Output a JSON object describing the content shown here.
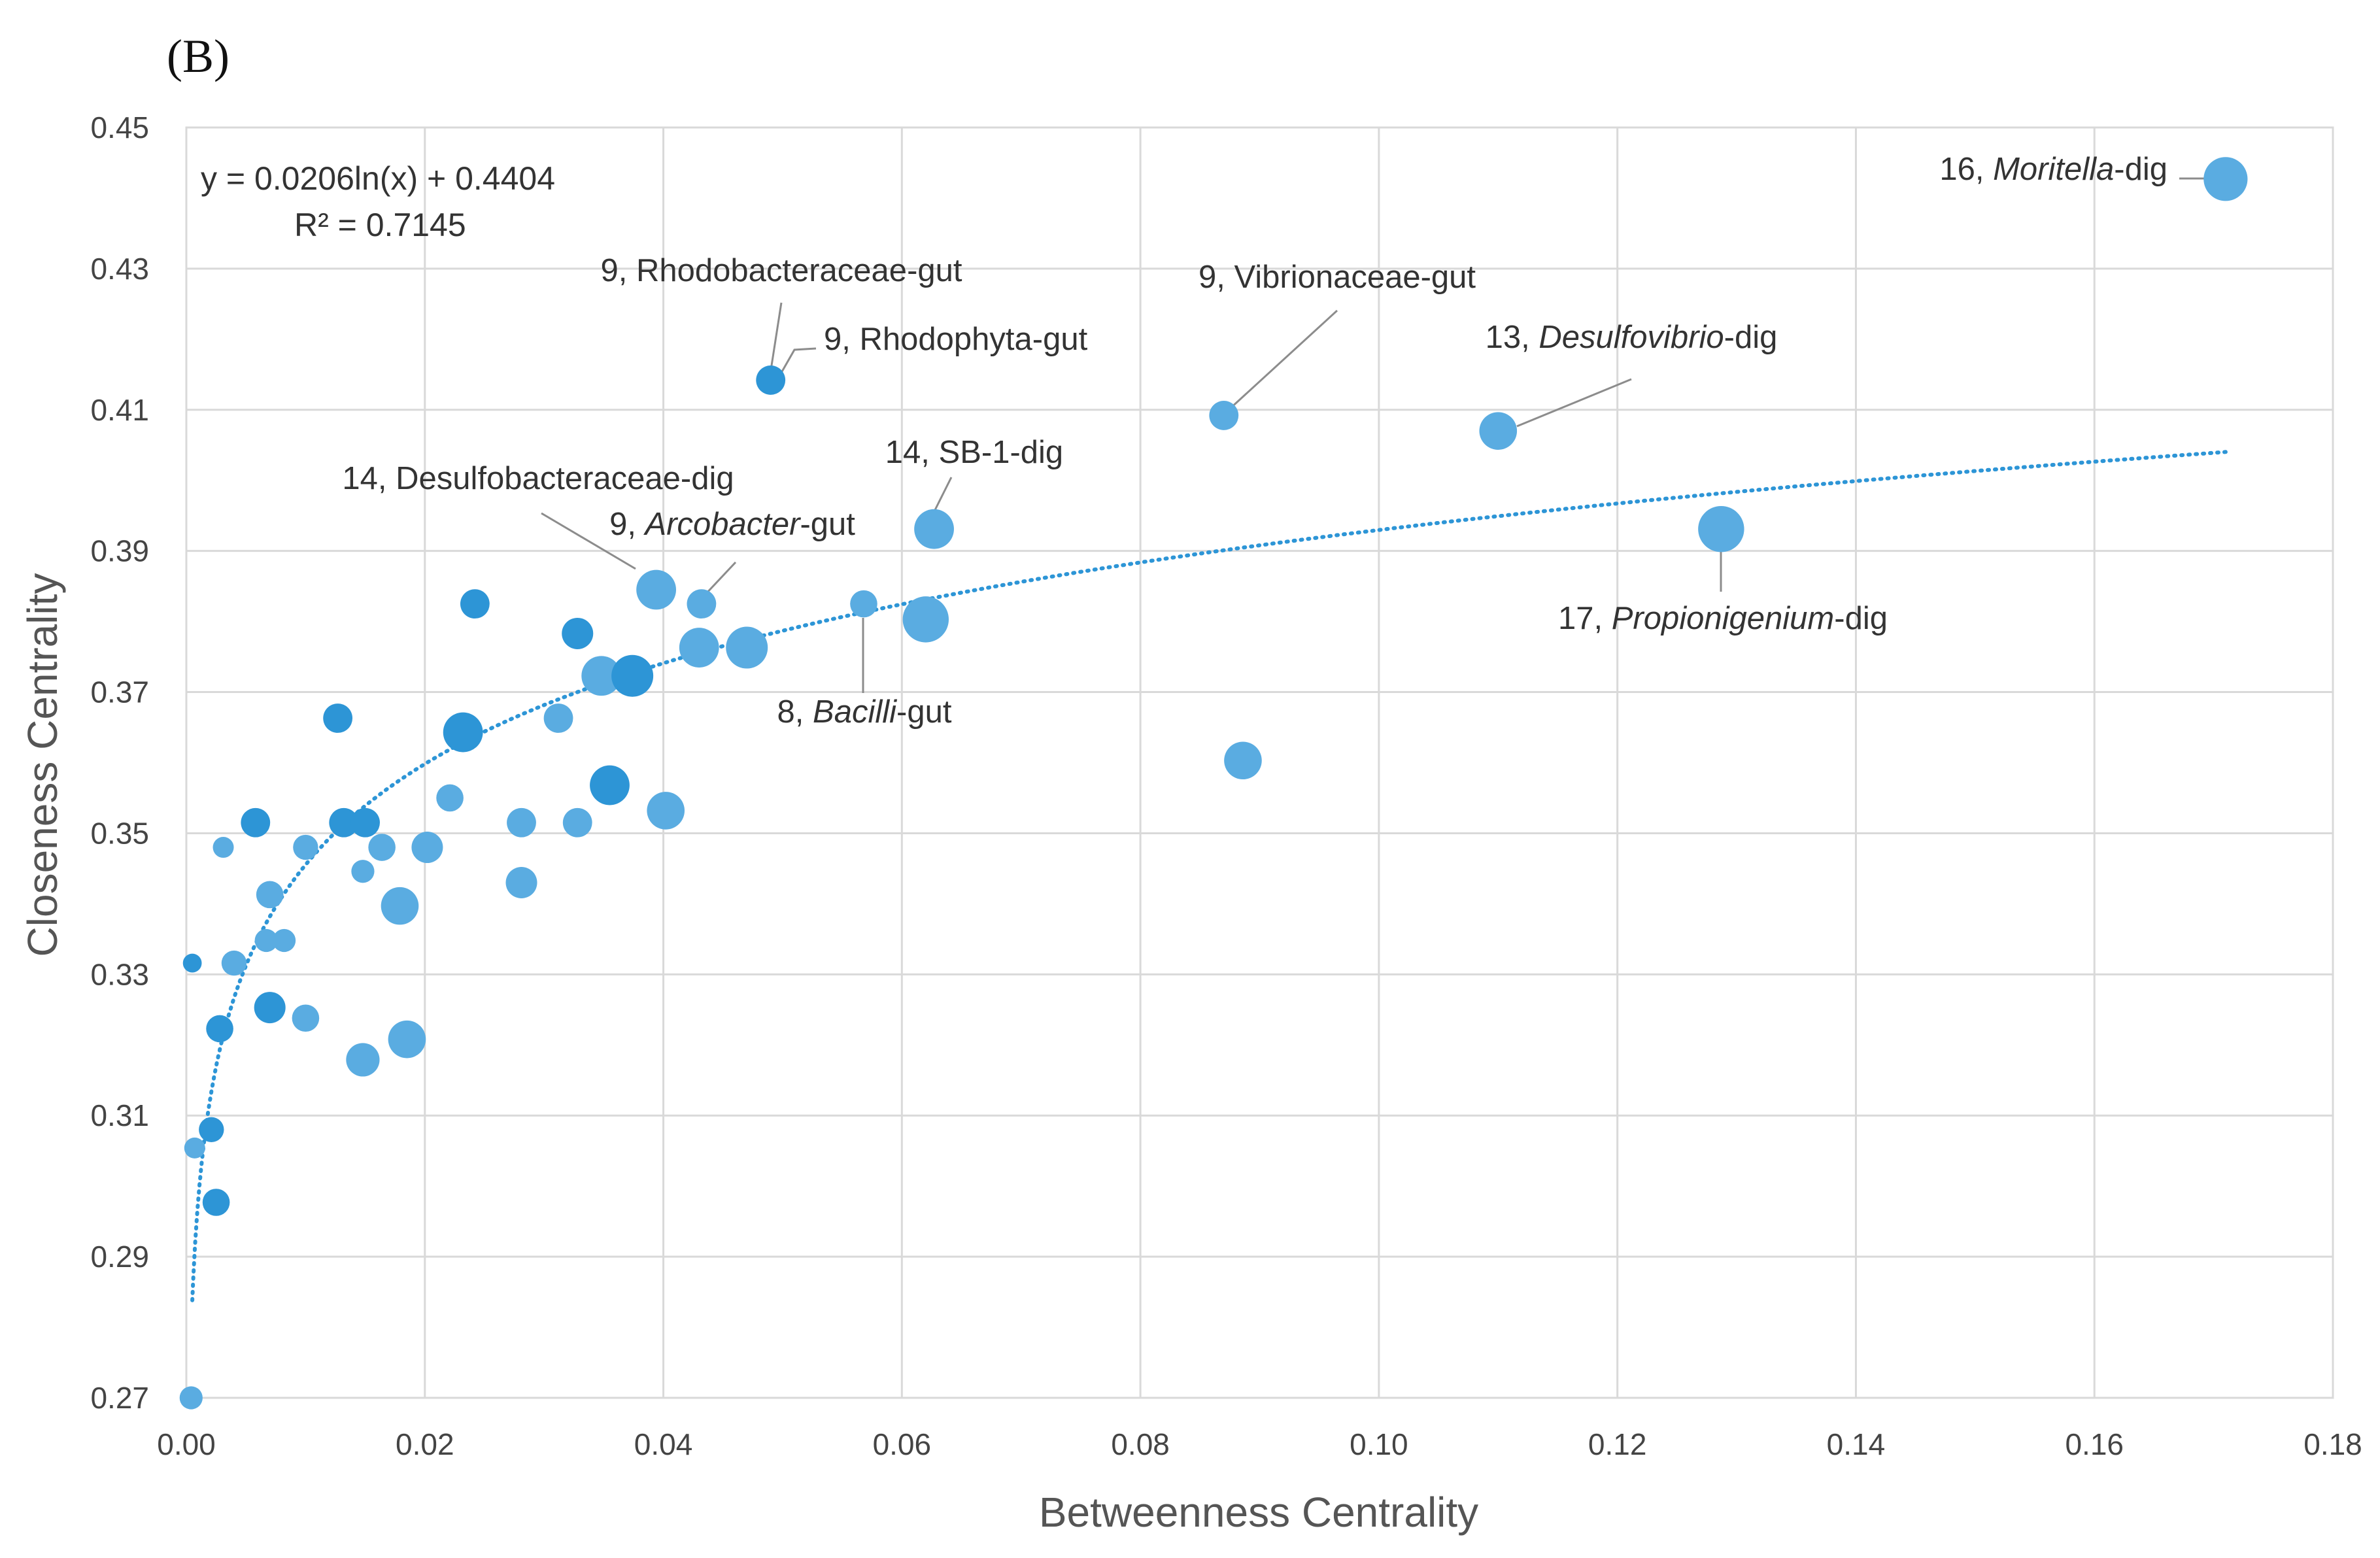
{
  "panel_label": "(B)",
  "equation": "y = 0.0206ln(x) + 0.4404",
  "r_squared": "R² = 0.7145",
  "colors": {
    "point_light": "#5aace1",
    "point_dark": "#2d95d6",
    "trendline": "#2d95d6"
  },
  "chart_data": {
    "type": "scatter",
    "xlabel": "Betweenness Centrality",
    "ylabel": "Closeness Centrality",
    "xlim": [
      0,
      0.18
    ],
    "ylim": [
      0.27,
      0.45
    ],
    "x_ticks": [
      "0.00",
      "0.02",
      "0.04",
      "0.06",
      "0.08",
      "0.10",
      "0.12",
      "0.14",
      "0.16",
      "0.18"
    ],
    "y_ticks": [
      "0.27",
      "0.29",
      "0.31",
      "0.33",
      "0.35",
      "0.37",
      "0.39",
      "0.41",
      "0.43",
      "0.45"
    ],
    "grid": true,
    "legend": "none",
    "trendline": {
      "type": "logarithmic",
      "a": 0.0206,
      "b": 0.4404,
      "x_range": [
        0.0005,
        0.171
      ]
    },
    "points": [
      {
        "x": 0.171,
        "y": 0.4427,
        "degree": 16,
        "group": "light"
      },
      {
        "x": 0.049,
        "y": 0.4142,
        "degree": 9,
        "group": "dark"
      },
      {
        "x": 0.087,
        "y": 0.4092,
        "degree": 9,
        "group": "light"
      },
      {
        "x": 0.11,
        "y": 0.407,
        "degree": 13,
        "group": "light"
      },
      {
        "x": 0.0627,
        "y": 0.3931,
        "degree": 14,
        "group": "light"
      },
      {
        "x": 0.1287,
        "y": 0.3931,
        "degree": 17,
        "group": "light"
      },
      {
        "x": 0.0394,
        "y": 0.3845,
        "degree": 14,
        "group": "light"
      },
      {
        "x": 0.0432,
        "y": 0.3825,
        "degree": 9,
        "group": "light"
      },
      {
        "x": 0.0568,
        "y": 0.3825,
        "degree": 8,
        "group": "light"
      },
      {
        "x": 0.0242,
        "y": 0.3825,
        "degree": 9,
        "group": "dark"
      },
      {
        "x": 0.062,
        "y": 0.3803,
        "degree": 17,
        "group": "light"
      },
      {
        "x": 0.0328,
        "y": 0.3783,
        "degree": 10,
        "group": "dark"
      },
      {
        "x": 0.043,
        "y": 0.3763,
        "degree": 14,
        "group": "light"
      },
      {
        "x": 0.047,
        "y": 0.3763,
        "degree": 15,
        "group": "light"
      },
      {
        "x": 0.0348,
        "y": 0.3723,
        "degree": 14,
        "group": "light"
      },
      {
        "x": 0.0374,
        "y": 0.3723,
        "degree": 15,
        "group": "dark"
      },
      {
        "x": 0.0127,
        "y": 0.3663,
        "degree": 9,
        "group": "dark"
      },
      {
        "x": 0.0312,
        "y": 0.3663,
        "degree": 9,
        "group": "light"
      },
      {
        "x": 0.0232,
        "y": 0.3643,
        "degree": 14,
        "group": "dark"
      },
      {
        "x": 0.0886,
        "y": 0.3603,
        "degree": 13,
        "group": "light"
      },
      {
        "x": 0.0355,
        "y": 0.3568,
        "degree": 14,
        "group": "dark"
      },
      {
        "x": 0.0221,
        "y": 0.355,
        "degree": 8,
        "group": "light"
      },
      {
        "x": 0.0402,
        "y": 0.3532,
        "degree": 13,
        "group": "light"
      },
      {
        "x": 0.0058,
        "y": 0.3515,
        "degree": 9,
        "group": "dark"
      },
      {
        "x": 0.0132,
        "y": 0.3515,
        "degree": 9,
        "group": "dark"
      },
      {
        "x": 0.015,
        "y": 0.3515,
        "degree": 9,
        "group": "dark"
      },
      {
        "x": 0.0281,
        "y": 0.3515,
        "degree": 9,
        "group": "light"
      },
      {
        "x": 0.0328,
        "y": 0.3515,
        "degree": 9,
        "group": "light"
      },
      {
        "x": 0.0031,
        "y": 0.348,
        "degree": 5,
        "group": "light"
      },
      {
        "x": 0.01,
        "y": 0.348,
        "degree": 7,
        "group": "light"
      },
      {
        "x": 0.0164,
        "y": 0.348,
        "degree": 8,
        "group": "light"
      },
      {
        "x": 0.0202,
        "y": 0.348,
        "degree": 10,
        "group": "light"
      },
      {
        "x": 0.0148,
        "y": 0.3446,
        "degree": 6,
        "group": "light"
      },
      {
        "x": 0.0281,
        "y": 0.343,
        "degree": 10,
        "group": "light"
      },
      {
        "x": 0.007,
        "y": 0.3413,
        "degree": 8,
        "group": "light"
      },
      {
        "x": 0.0179,
        "y": 0.3397,
        "degree": 13,
        "group": "light"
      },
      {
        "x": 0.0067,
        "y": 0.3348,
        "degree": 6,
        "group": "light"
      },
      {
        "x": 0.0082,
        "y": 0.3348,
        "degree": 6,
        "group": "light"
      },
      {
        "x": 0.0005,
        "y": 0.3316,
        "degree": 4,
        "group": "dark"
      },
      {
        "x": 0.004,
        "y": 0.3316,
        "degree": 7,
        "group": "light"
      },
      {
        "x": 0.007,
        "y": 0.3253,
        "degree": 10,
        "group": "dark"
      },
      {
        "x": 0.01,
        "y": 0.3238,
        "degree": 8,
        "group": "light"
      },
      {
        "x": 0.0028,
        "y": 0.3223,
        "degree": 8,
        "group": "dark"
      },
      {
        "x": 0.0185,
        "y": 0.3208,
        "degree": 13,
        "group": "light"
      },
      {
        "x": 0.0148,
        "y": 0.3179,
        "degree": 11,
        "group": "light"
      },
      {
        "x": 0.0021,
        "y": 0.308,
        "degree": 7,
        "group": "dark"
      },
      {
        "x": 0.0007,
        "y": 0.3054,
        "degree": 5,
        "group": "light"
      },
      {
        "x": 0.0025,
        "y": 0.2977,
        "degree": 8,
        "group": "dark"
      },
      {
        "x": 0.0004,
        "y": 0.27,
        "degree": 6,
        "group": "light"
      }
    ],
    "annotations": [
      {
        "degree": "16,",
        "name": "Moritella",
        "suffix": "-dig",
        "italic": true,
        "point": 0
      },
      {
        "degree": "9,",
        "name": "Rhodobacteraceae",
        "suffix": "-gut",
        "italic": false,
        "point": 1
      },
      {
        "degree": "9,",
        "name": "Rhodophyta",
        "suffix": "-gut",
        "italic": false,
        "point": 1
      },
      {
        "degree": "9,",
        "name": "Vibrionaceae",
        "suffix": "-gut",
        "italic": false,
        "point": 2
      },
      {
        "degree": "13,",
        "name": "Desulfovibrio",
        "suffix": "-dig",
        "italic": true,
        "point": 3
      },
      {
        "degree": "14,",
        "name": "SB-1",
        "suffix": "-dig",
        "italic": false,
        "point": 4
      },
      {
        "degree": "17,",
        "name": "Propionigenium",
        "suffix": "-dig",
        "italic": true,
        "point": 5
      },
      {
        "degree": "14,",
        "name": "Desulfobacteraceae",
        "suffix": "-dig",
        "italic": false,
        "point": 6
      },
      {
        "degree": "9,",
        "name": "Arcobacter",
        "suffix": "-gut",
        "italic": true,
        "point": 7
      },
      {
        "degree": "8,",
        "name": "Bacilli",
        "suffix": "-gut",
        "italic": true,
        "point": 8
      }
    ]
  }
}
